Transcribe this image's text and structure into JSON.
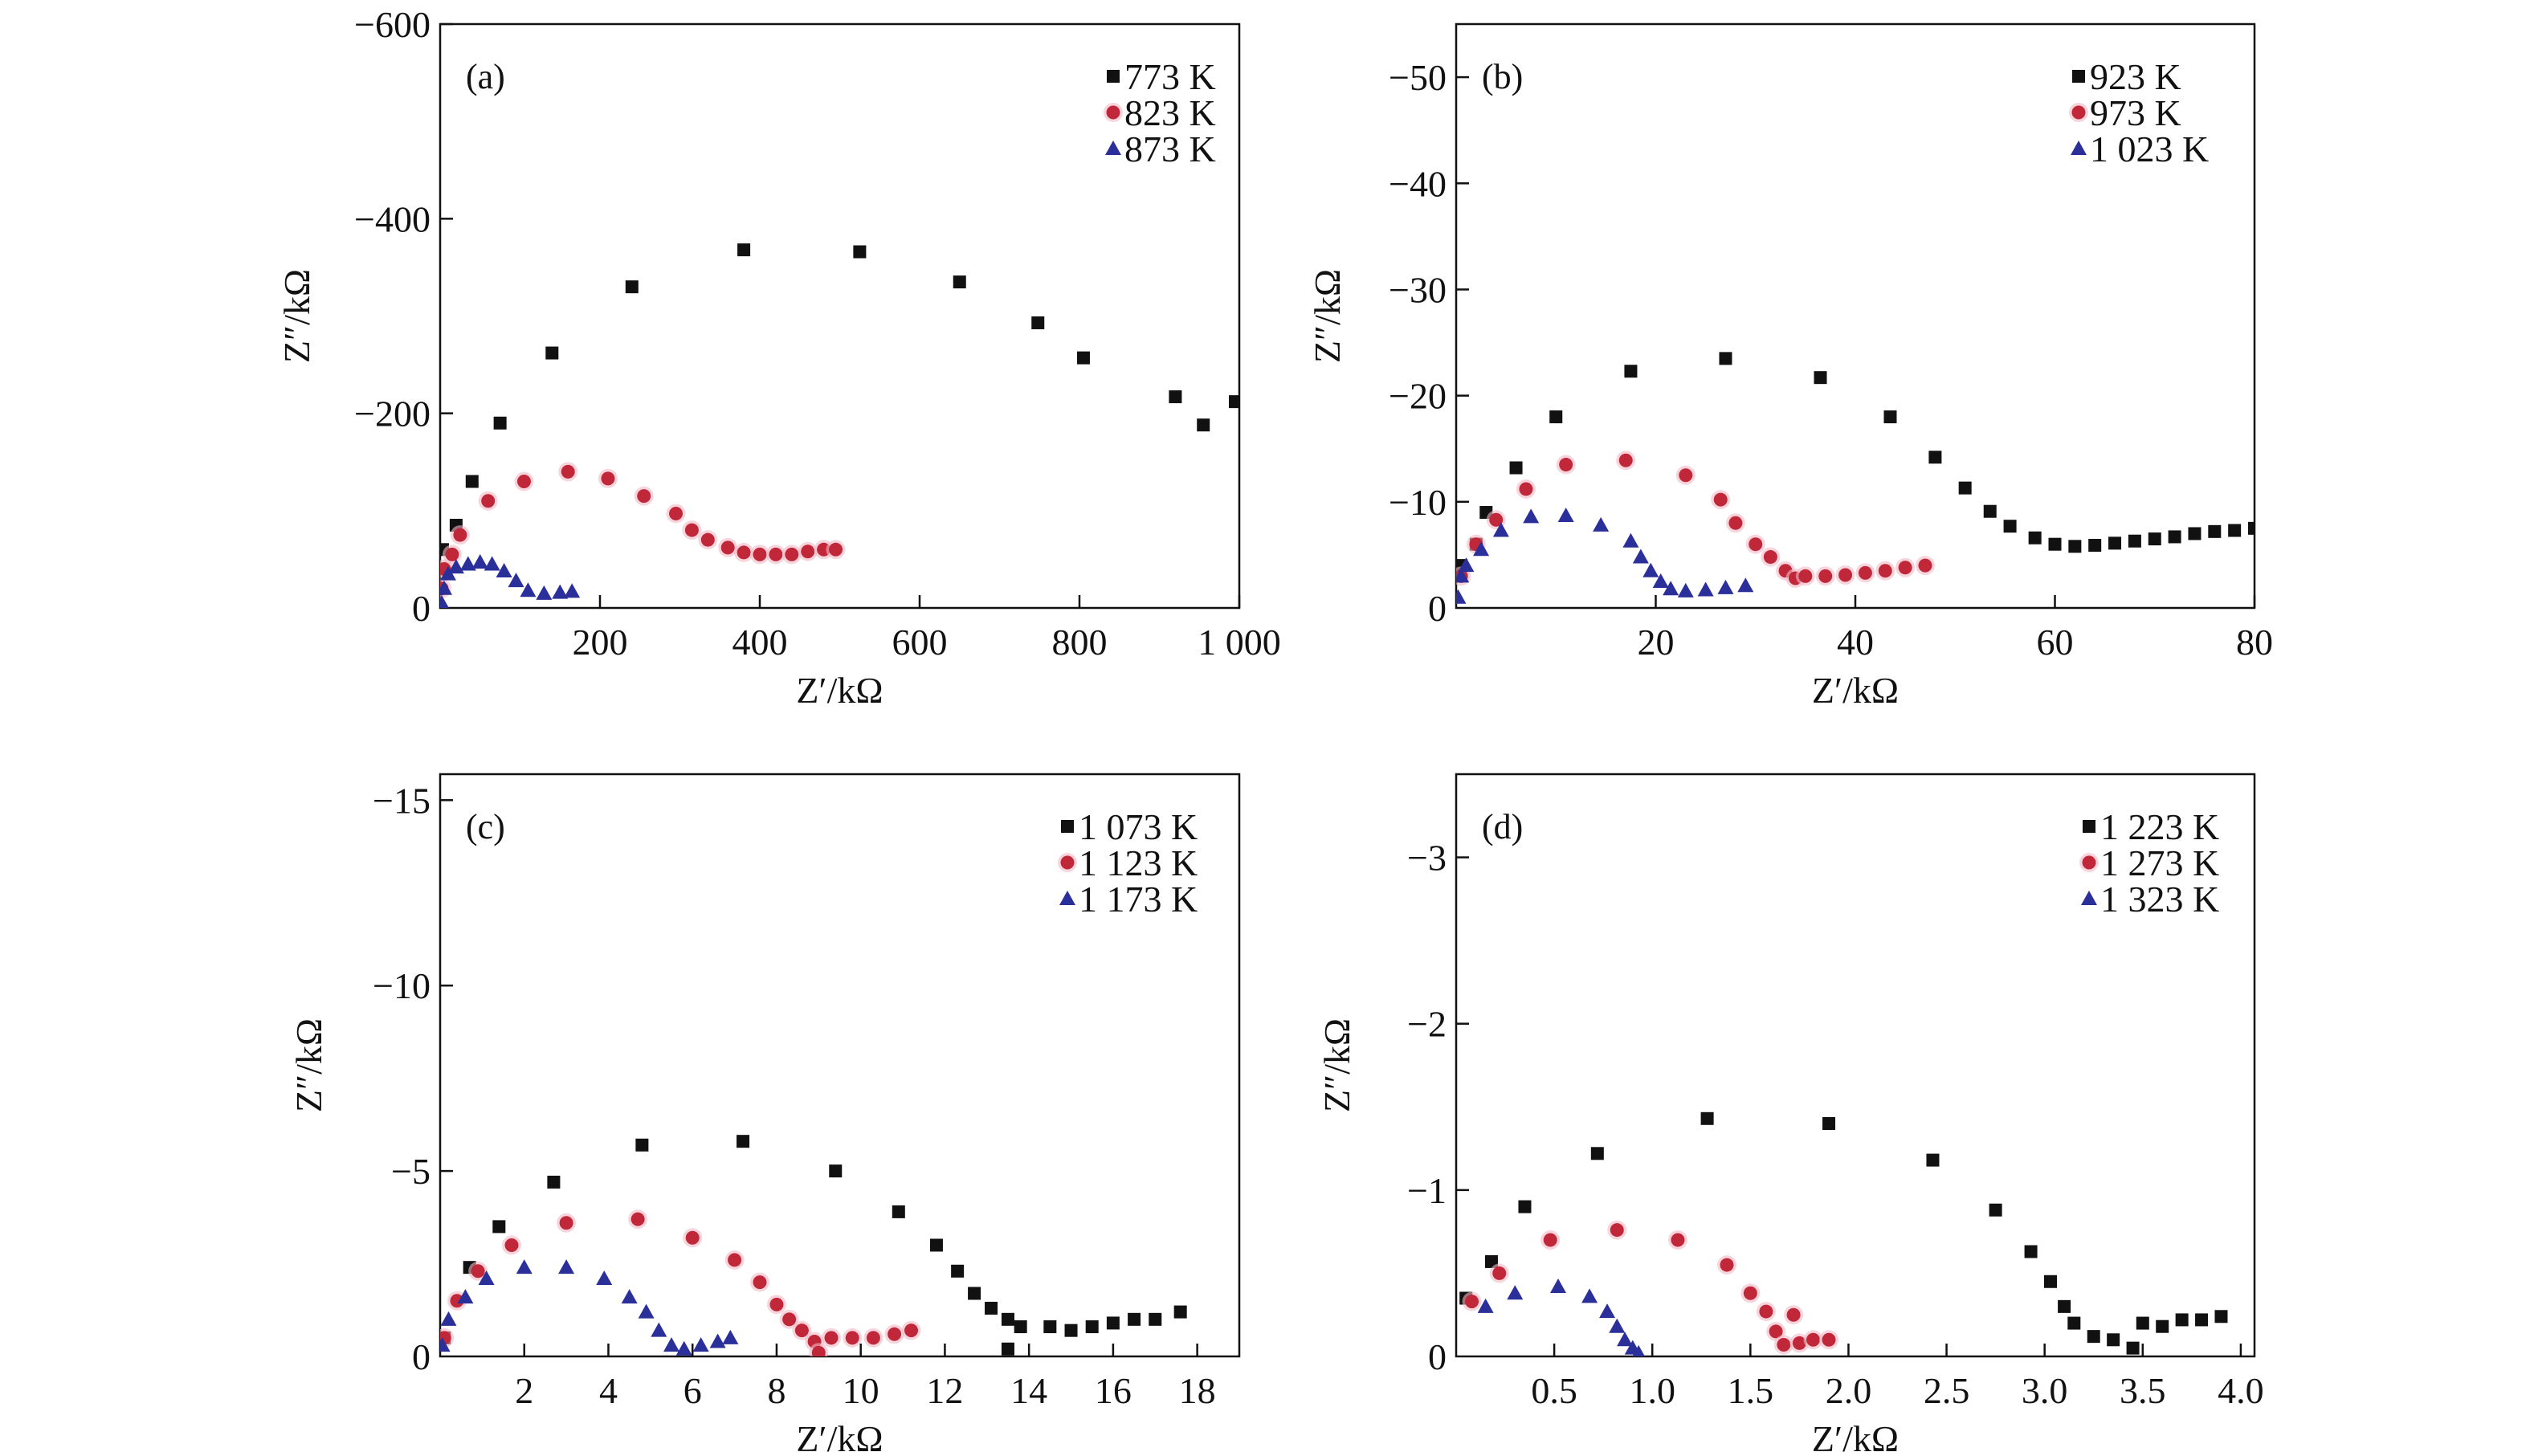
{
  "chart_data": [
    {
      "type": "scatter",
      "panel_label": "(a)",
      "xlabel": "Z′/kΩ",
      "ylabel": "Z″/kΩ",
      "xlim": [
        0,
        1000
      ],
      "ylim": [
        0,
        -600
      ],
      "xticks": [
        {
          "v": 200,
          "label": "200"
        },
        {
          "v": 400,
          "label": "400"
        },
        {
          "v": 600,
          "label": "600"
        },
        {
          "v": 800,
          "label": "800"
        },
        {
          "v": 1000,
          "label": "1 000"
        }
      ],
      "yticks": [
        {
          "v": 0,
          "label": "0"
        },
        {
          "v": -200,
          "label": "−200"
        },
        {
          "v": -400,
          "label": "−400"
        },
        {
          "v": -600,
          "label": "−600"
        }
      ],
      "legend_position": "top-right",
      "series": [
        {
          "name": "773 K",
          "marker": "square",
          "color": "#111111",
          "x": [
            3,
            20,
            40,
            75,
            140,
            240,
            380,
            525,
            650,
            748,
            805,
            920,
            955,
            995
          ],
          "y": [
            -60,
            -85,
            -130,
            -190,
            -262,
            -330,
            -368,
            -366,
            -335,
            -293,
            -257,
            -217,
            -188,
            -212
          ]
        },
        {
          "name": "823 K",
          "marker": "circle",
          "color": "#c0283a",
          "x": [
            2,
            5,
            15,
            25,
            60,
            105,
            160,
            210,
            255,
            295,
            315,
            335,
            360,
            380,
            400,
            420,
            440,
            460,
            480,
            495
          ],
          "y": [
            -20,
            -40,
            -55,
            -75,
            -110,
            -130,
            -140,
            -133,
            -115,
            -97,
            -80,
            -70,
            -62,
            -57,
            -55,
            -55,
            -55,
            -58,
            -60,
            -60
          ]
        },
        {
          "name": "873 K",
          "marker": "triangle",
          "color": "#2b2f9a",
          "x": [
            2,
            5,
            10,
            20,
            35,
            50,
            65,
            80,
            95,
            110,
            130,
            150,
            165
          ],
          "y": [
            -5,
            -20,
            -35,
            -42,
            -45,
            -47,
            -45,
            -38,
            -28,
            -18,
            -15,
            -16,
            -17
          ]
        }
      ]
    },
    {
      "type": "scatter",
      "panel_label": "(b)",
      "xlabel": "Z′/kΩ",
      "ylabel": "Z″/kΩ",
      "xlim": [
        0,
        80
      ],
      "ylim": [
        0,
        -55
      ],
      "xticks": [
        {
          "v": 20,
          "label": "20"
        },
        {
          "v": 40,
          "label": "40"
        },
        {
          "v": 60,
          "label": "60"
        },
        {
          "v": 80,
          "label": "80"
        }
      ],
      "yticks": [
        {
          "v": 0,
          "label": "0"
        },
        {
          "v": -10,
          "label": "−10"
        },
        {
          "v": -20,
          "label": "−20"
        },
        {
          "v": -30,
          "label": "−30"
        },
        {
          "v": -40,
          "label": "−40"
        },
        {
          "v": -50,
          "label": "−50"
        }
      ],
      "legend_position": "top-right",
      "series": [
        {
          "name": "923 K",
          "marker": "square",
          "color": "#111111",
          "x": [
            0.5,
            2,
            3,
            6,
            10,
            17.5,
            27,
            36.5,
            43.5,
            48,
            51,
            53.5,
            55.5,
            58,
            60,
            62,
            64,
            66,
            68,
            70,
            72,
            74,
            76,
            78,
            80
          ],
          "y": [
            -4,
            -6,
            -9,
            -13.2,
            -18,
            -22.3,
            -23.5,
            -21.7,
            -18,
            -14.2,
            -11.3,
            -9.1,
            -7.7,
            -6.6,
            -6,
            -5.8,
            -5.9,
            -6.1,
            -6.3,
            -6.5,
            -6.7,
            -7,
            -7.2,
            -7.3,
            -7.5
          ]
        },
        {
          "name": "973 K",
          "marker": "circle",
          "color": "#c0283a",
          "x": [
            0.5,
            2,
            4,
            7,
            11,
            17,
            23,
            26.5,
            28,
            30,
            31.5,
            33,
            34,
            35,
            37,
            39,
            41,
            43,
            45,
            47
          ],
          "y": [
            -3,
            -6,
            -8.3,
            -11.2,
            -13.5,
            -13.9,
            -12.5,
            -10.2,
            -8,
            -6,
            -4.8,
            -3.5,
            -2.8,
            -3,
            -3,
            -3.1,
            -3.3,
            -3.5,
            -3.8,
            -4
          ]
        },
        {
          "name": "1 023 K",
          "marker": "triangle",
          "color": "#2b2f9a",
          "x": [
            0.2,
            0.5,
            1,
            2.5,
            4.5,
            7.5,
            11,
            14.5,
            17.5,
            18.5,
            19.5,
            20.5,
            21.5,
            23,
            25,
            27,
            29
          ],
          "y": [
            -1,
            -3,
            -4,
            -5.5,
            -7.3,
            -8.6,
            -8.7,
            -7.8,
            -6.3,
            -4.8,
            -3.5,
            -2.5,
            -1.8,
            -1.6,
            -1.7,
            -1.9,
            -2.1
          ]
        }
      ]
    },
    {
      "type": "scatter",
      "panel_label": "(c)",
      "xlabel": "Z′/kΩ",
      "ylabel": "Z″/kΩ",
      "xlim": [
        0,
        19
      ],
      "ylim": [
        0,
        -15.7
      ],
      "xticks": [
        {
          "v": 2,
          "label": "2"
        },
        {
          "v": 4,
          "label": "4"
        },
        {
          "v": 6,
          "label": "6"
        },
        {
          "v": 8,
          "label": "8"
        },
        {
          "v": 10,
          "label": "10"
        },
        {
          "v": 12,
          "label": "12"
        },
        {
          "v": 14,
          "label": "14"
        },
        {
          "v": 16,
          "label": "16"
        },
        {
          "v": 18,
          "label": "18"
        }
      ],
      "yticks": [
        {
          "v": 0,
          "label": "0"
        },
        {
          "v": -5,
          "label": "−5"
        },
        {
          "v": -10,
          "label": "−10"
        },
        {
          "v": -15,
          "label": "−15"
        }
      ],
      "legend_position": "top-right",
      "series": [
        {
          "name": "1 073 K",
          "marker": "square",
          "color": "#111111",
          "x": [
            0.1,
            0.7,
            1.4,
            2.7,
            4.8,
            7.2,
            9.4,
            10.9,
            11.8,
            12.3,
            12.7,
            13.1,
            13.5,
            13.8,
            13.5,
            14.5,
            15,
            15.5,
            16,
            16.5,
            17,
            17.6
          ],
          "y": [
            -0.5,
            -2.4,
            -3.5,
            -4.7,
            -5.7,
            -5.8,
            -5,
            -3.9,
            -3,
            -2.3,
            -1.7,
            -1.3,
            -1,
            -0.8,
            -0.2,
            -0.8,
            -0.7,
            -0.8,
            -0.9,
            -1,
            -1,
            -1.2
          ]
        },
        {
          "name": "1 123 K",
          "marker": "circle",
          "color": "#c0283a",
          "x": [
            0.1,
            0.4,
            0.9,
            1.7,
            3,
            4.7,
            6,
            7,
            7.6,
            8,
            8.3,
            8.6,
            8.9,
            9,
            9.3,
            9.8,
            10.3,
            10.8,
            11.2
          ],
          "y": [
            -0.5,
            -1.5,
            -2.3,
            -3,
            -3.6,
            -3.7,
            -3.2,
            -2.6,
            -2,
            -1.4,
            -1,
            -0.7,
            -0.4,
            -0.1,
            -0.5,
            -0.5,
            -0.5,
            -0.6,
            -0.7
          ]
        },
        {
          "name": "1 173 K",
          "marker": "triangle",
          "color": "#2b2f9a",
          "x": [
            0.05,
            0.2,
            0.6,
            1.1,
            2,
            3,
            3.9,
            4.5,
            4.9,
            5.2,
            5.5,
            5.8,
            6.2,
            6.6,
            6.9
          ],
          "y": [
            -0.3,
            -1,
            -1.6,
            -2.1,
            -2.4,
            -2.4,
            -2.1,
            -1.6,
            -1.2,
            -0.7,
            -0.3,
            -0.2,
            -0.3,
            -0.4,
            -0.5
          ]
        }
      ]
    },
    {
      "type": "scatter",
      "panel_label": "(d)",
      "xlabel": "Z′/kΩ",
      "ylabel": "Z″/kΩ",
      "xlim": [
        0,
        4.07
      ],
      "ylim": [
        0,
        -3.5
      ],
      "xticks": [
        {
          "v": 0.5,
          "label": "0.5"
        },
        {
          "v": 1.0,
          "label": "1.0"
        },
        {
          "v": 1.5,
          "label": "1.5"
        },
        {
          "v": 2.0,
          "label": "2.0"
        },
        {
          "v": 2.5,
          "label": "2.5"
        },
        {
          "v": 3.0,
          "label": "3.0"
        },
        {
          "v": 3.5,
          "label": "3.5"
        },
        {
          "v": 4.0,
          "label": "4.0"
        }
      ],
      "yticks": [
        {
          "v": 0,
          "label": "0"
        },
        {
          "v": -1,
          "label": "−1"
        },
        {
          "v": -2,
          "label": "−2"
        },
        {
          "v": -3,
          "label": "−3"
        }
      ],
      "legend_position": "top-right",
      "series": [
        {
          "name": "1 223 K",
          "marker": "square",
          "color": "#111111",
          "x": [
            0.05,
            0.18,
            0.35,
            0.72,
            1.28,
            1.9,
            2.43,
            2.75,
            2.93,
            3.03,
            3.1,
            3.15,
            3.25,
            3.35,
            3.45,
            3.5,
            3.6,
            3.7,
            3.8,
            3.9
          ],
          "y": [
            -0.35,
            -0.57,
            -0.9,
            -1.22,
            -1.43,
            -1.4,
            -1.18,
            -0.88,
            -0.63,
            -0.45,
            -0.3,
            -0.2,
            -0.12,
            -0.1,
            -0.05,
            -0.2,
            -0.18,
            -0.22,
            -0.22,
            -0.24
          ]
        },
        {
          "name": "1 273 K",
          "marker": "circle",
          "color": "#c0283a",
          "x": [
            0.08,
            0.22,
            0.48,
            0.82,
            1.13,
            1.38,
            1.5,
            1.58,
            1.63,
            1.67,
            1.72,
            1.75,
            1.82,
            1.9
          ],
          "y": [
            -0.33,
            -0.5,
            -0.7,
            -0.76,
            -0.7,
            -0.55,
            -0.38,
            -0.27,
            -0.15,
            -0.07,
            -0.25,
            -0.08,
            -0.1,
            -0.1
          ]
        },
        {
          "name": "1 323 K",
          "marker": "triangle",
          "color": "#2b2f9a",
          "x": [
            0.15,
            0.3,
            0.52,
            0.68,
            0.77,
            0.82,
            0.86,
            0.9,
            0.93
          ],
          "y": [
            -0.3,
            -0.38,
            -0.42,
            -0.36,
            -0.27,
            -0.18,
            -0.1,
            -0.05,
            -0.02
          ]
        }
      ]
    }
  ]
}
